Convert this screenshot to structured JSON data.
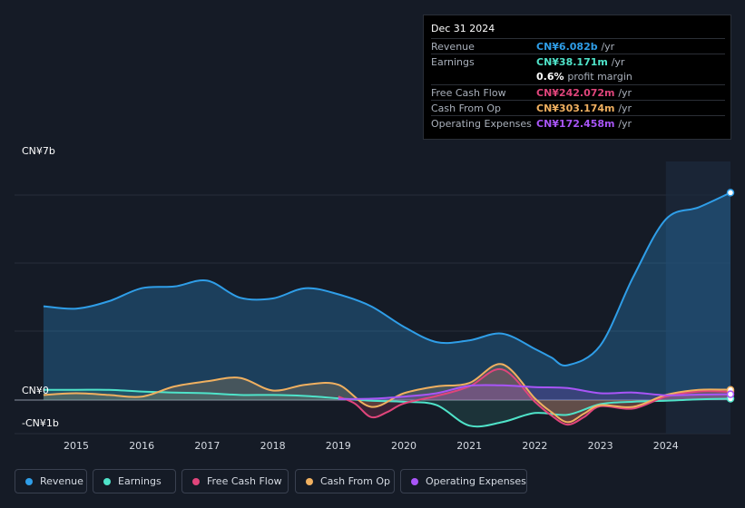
{
  "tooltip": {
    "date": "Dec 31 2024",
    "rows": [
      {
        "label": "Revenue",
        "value": "CN¥6.082b",
        "unit": "/yr",
        "color": "#2f9ee8"
      },
      {
        "label": "Earnings",
        "value": "CN¥38.171m",
        "unit": "/yr",
        "color": "#4fe3c9"
      },
      {
        "label": "",
        "value": "0.6%",
        "unit": "profit margin",
        "color": "#ffffff"
      },
      {
        "label": "Free Cash Flow",
        "value": "CN¥242.072m",
        "unit": "/yr",
        "color": "#e0457b"
      },
      {
        "label": "Cash From Op",
        "value": "CN¥303.174m",
        "unit": "/yr",
        "color": "#f0b060"
      },
      {
        "label": "Operating Expenses",
        "value": "CN¥172.458m",
        "unit": "/yr",
        "color": "#a855f7"
      }
    ]
  },
  "legend": [
    {
      "label": "Revenue",
      "color": "#2f9ee8"
    },
    {
      "label": "Earnings",
      "color": "#4fe3c9"
    },
    {
      "label": "Free Cash Flow",
      "color": "#e0457b"
    },
    {
      "label": "Cash From Op",
      "color": "#f0b060"
    },
    {
      "label": "Operating Expenses",
      "color": "#a855f7"
    }
  ],
  "chart_data": {
    "type": "area",
    "title": "",
    "y_unit": "CN¥ billions",
    "ylim": [
      -1,
      7
    ],
    "y_tick_labels": [
      "CN¥7b",
      "CN¥0",
      "-CN¥1b"
    ],
    "y_tick_values": [
      7,
      0,
      -1
    ],
    "x_tick_labels": [
      "2015",
      "2016",
      "2017",
      "2018",
      "2019",
      "2020",
      "2021",
      "2022",
      "2023",
      "2024"
    ],
    "x_tick_values": [
      2015,
      2016,
      2017,
      2018,
      2019,
      2020,
      2021,
      2022,
      2023,
      2024
    ],
    "xlim": [
      2014.5,
      2025.0
    ],
    "highlight_start": 2024.0,
    "series": [
      {
        "name": "Revenue",
        "color": "#2f9ee8",
        "x": [
          2014.5,
          2015.0,
          2015.5,
          2016.0,
          2016.5,
          2017.0,
          2017.5,
          2018.0,
          2018.5,
          2019.0,
          2019.5,
          2020.0,
          2020.5,
          2021.0,
          2021.5,
          2022.0,
          2022.25,
          2022.5,
          2023.0,
          2023.5,
          2024.0,
          2024.5,
          2025.0
        ],
        "values": [
          2.75,
          2.68,
          2.9,
          3.28,
          3.33,
          3.5,
          3.0,
          2.98,
          3.28,
          3.1,
          2.75,
          2.15,
          1.7,
          1.75,
          1.95,
          1.5,
          1.25,
          1.02,
          1.6,
          3.6,
          5.3,
          5.65,
          6.08
        ]
      },
      {
        "name": "Earnings",
        "color": "#4fe3c9",
        "x": [
          2014.5,
          2015.0,
          2015.5,
          2016.0,
          2016.5,
          2017.0,
          2017.5,
          2018.0,
          2018.5,
          2019.0,
          2019.5,
          2020.0,
          2020.5,
          2021.0,
          2021.5,
          2022.0,
          2022.5,
          2023.0,
          2023.5,
          2024.0,
          2024.5,
          2025.0
        ],
        "values": [
          0.3,
          0.3,
          0.3,
          0.25,
          0.22,
          0.2,
          0.15,
          0.15,
          0.12,
          0.05,
          -0.02,
          -0.05,
          -0.15,
          -0.75,
          -0.65,
          -0.38,
          -0.43,
          -0.12,
          -0.05,
          -0.02,
          0.02,
          0.04
        ]
      },
      {
        "name": "Free Cash Flow",
        "color": "#e0457b",
        "x": [
          2019.0,
          2019.25,
          2019.5,
          2019.75,
          2020.0,
          2020.5,
          2021.0,
          2021.5,
          2022.0,
          2022.25,
          2022.5,
          2022.75,
          2023.0,
          2023.5,
          2024.0,
          2024.5,
          2025.0
        ],
        "values": [
          0.1,
          -0.1,
          -0.5,
          -0.35,
          -0.1,
          0.12,
          0.4,
          0.9,
          -0.05,
          -0.45,
          -0.72,
          -0.5,
          -0.18,
          -0.25,
          0.1,
          0.25,
          0.24
        ]
      },
      {
        "name": "Cash From Op",
        "color": "#f0b060",
        "x": [
          2014.5,
          2015.0,
          2015.5,
          2016.0,
          2016.5,
          2017.0,
          2017.5,
          2018.0,
          2018.5,
          2019.0,
          2019.5,
          2020.0,
          2020.5,
          2021.0,
          2021.5,
          2022.0,
          2022.25,
          2022.5,
          2022.75,
          2023.0,
          2023.5,
          2024.0,
          2024.5,
          2025.0
        ],
        "values": [
          0.15,
          0.2,
          0.15,
          0.1,
          0.4,
          0.55,
          0.65,
          0.28,
          0.45,
          0.45,
          -0.2,
          0.2,
          0.4,
          0.5,
          1.05,
          0.05,
          -0.35,
          -0.65,
          -0.4,
          -0.15,
          -0.2,
          0.15,
          0.3,
          0.3
        ]
      },
      {
        "name": "Operating Expenses",
        "color": "#a855f7",
        "x": [
          2019.0,
          2019.5,
          2020.0,
          2020.5,
          2021.0,
          2021.5,
          2022.0,
          2022.5,
          2023.0,
          2023.5,
          2024.0,
          2024.5,
          2025.0
        ],
        "values": [
          0.03,
          0.04,
          0.1,
          0.2,
          0.42,
          0.43,
          0.38,
          0.35,
          0.2,
          0.22,
          0.14,
          0.16,
          0.17
        ]
      }
    ]
  }
}
